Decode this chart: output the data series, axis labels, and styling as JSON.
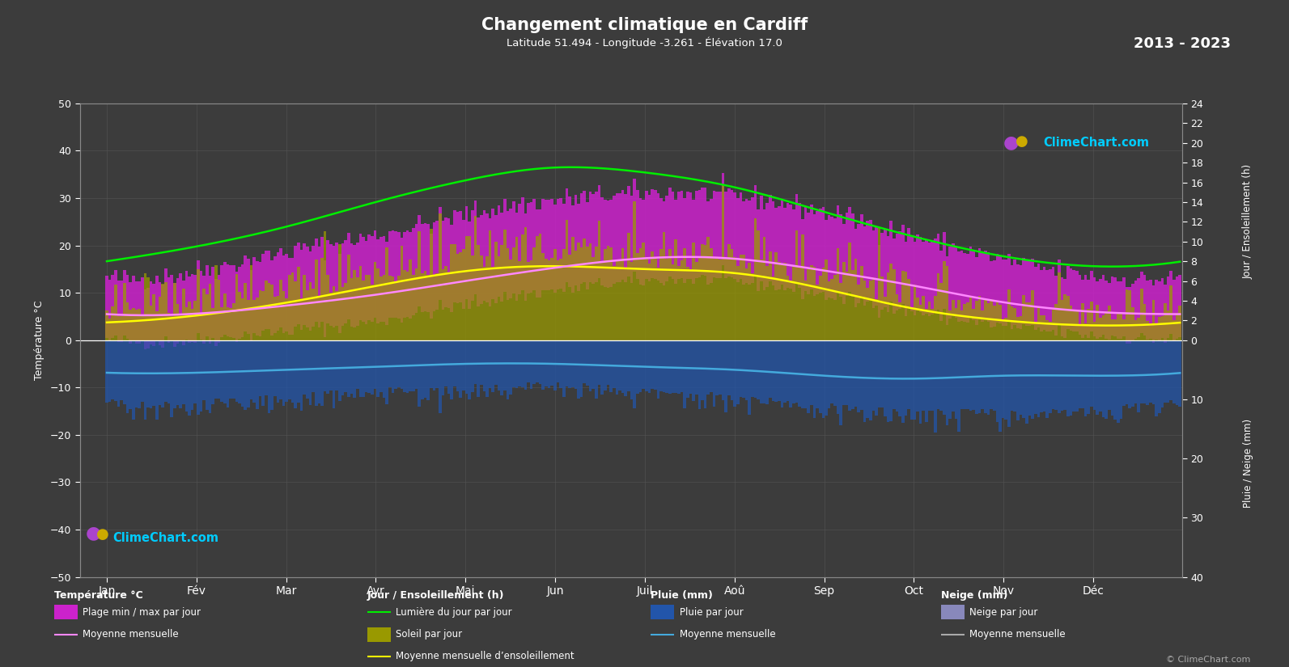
{
  "title": "Changement climatique en Cardiff",
  "subtitle": "Latitude 51.494 - Longitude -3.261 - Élévation 17.0",
  "year_range": "2013 - 2023",
  "background_color": "#3c3c3c",
  "grid_color": "#555555",
  "text_color": "#ffffff",
  "months_labels": [
    "Jan",
    "Fév",
    "Mar",
    "Avr",
    "Mai",
    "Jun",
    "Juil",
    "Aoû",
    "Sep",
    "Oct",
    "Nov",
    "Déc"
  ],
  "ylim_temp": [
    -50,
    50
  ],
  "temp_yticks": [
    -50,
    -40,
    -30,
    -20,
    -10,
    0,
    10,
    20,
    30,
    40,
    50
  ],
  "sun_scale": 2.0833,
  "rain_scale": 1.25,
  "monthly_mean_temp": [
    5.5,
    5.6,
    7.3,
    9.6,
    12.5,
    15.3,
    17.3,
    17.2,
    14.7,
    11.5,
    8.0,
    6.0
  ],
  "monthly_mean_sunshine_h": [
    1.8,
    2.5,
    3.8,
    5.5,
    7.0,
    7.5,
    7.2,
    6.8,
    5.2,
    3.2,
    2.0,
    1.5
  ],
  "monthly_daylight_h": [
    8.0,
    9.5,
    11.5,
    14.0,
    16.2,
    17.5,
    17.0,
    15.5,
    13.0,
    10.5,
    8.5,
    7.5
  ],
  "daily_temp_max_envelope_h": [
    13.0,
    14.5,
    18.5,
    22.0,
    26.5,
    29.5,
    31.0,
    30.5,
    27.0,
    22.0,
    17.0,
    13.5
  ],
  "daily_temp_min_envelope_h": [
    0.0,
    0.0,
    2.0,
    4.0,
    7.5,
    10.5,
    12.5,
    12.5,
    9.5,
    6.0,
    3.0,
    1.0
  ],
  "monthly_rain_mean_mm": [
    5.5,
    5.5,
    5.0,
    4.5,
    4.0,
    4.0,
    4.5,
    5.0,
    6.0,
    6.5,
    6.0,
    6.0
  ],
  "daily_rain_max_mm": [
    10.0,
    10.0,
    9.0,
    8.0,
    7.5,
    7.0,
    8.0,
    9.0,
    10.5,
    11.5,
    11.5,
    11.0
  ],
  "colors": {
    "temp_bar_magenta": "#cc22cc",
    "sunshine_bar_olive": "#999900",
    "daylight_line": "#00ee00",
    "sunshine_mean_line": "#ffff00",
    "temp_mean_line": "#ff88ff",
    "rain_bar": "#2255aa",
    "rain_mean_line": "#44aadd",
    "snow_bar": "#8888bb",
    "logo_cyan": "#00ccff",
    "logo_purple": "#aa44cc"
  },
  "left_ylabel": "Température °C",
  "right_ylabel_top": "Jour / Ensoleillement (h)",
  "right_ylabel_bottom": "Pluie / Neige (mm)",
  "legend": {
    "temp_cat": "Température °C",
    "plage": "Plage min / max par jour",
    "moy_temp": "Moyenne mensuelle",
    "jour_cat": "Jour / Ensoleillement (h)",
    "lumiere": "Lumière du jour par jour",
    "soleil": "Soleil par jour",
    "moy_sol": "Moyenne mensuelle d’ensoleillement",
    "pluie_cat": "Pluie (mm)",
    "pluie_jour": "Pluie par jour",
    "moy_pluie": "Moyenne mensuelle",
    "neige_cat": "Neige (mm)",
    "neige_jour": "Neige par jour",
    "moy_neige": "Moyenne mensuelle"
  }
}
